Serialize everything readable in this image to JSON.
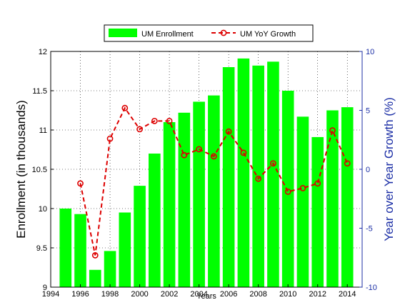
{
  "chart_data": {
    "type": "bar+line",
    "xlabel": "Years",
    "ylabel_left": "Enrollment (in thousands)",
    "ylabel_right": "Year over Year Growth (%)",
    "xlim": [
      1994,
      2015
    ],
    "ylim_left": [
      9,
      12
    ],
    "ylim_right": [
      -10,
      10
    ],
    "x_ticks": [
      1994,
      1996,
      1998,
      2000,
      2002,
      2004,
      2006,
      2008,
      2010,
      2012,
      2014
    ],
    "y_ticks_left": [
      9,
      9.5,
      10,
      10.5,
      11,
      11.5,
      12
    ],
    "y_ticks_right": [
      -10,
      -5,
      0,
      5,
      10
    ],
    "grid": true,
    "legend_position": "top",
    "series": [
      {
        "name": "UM Enrollment",
        "kind": "bar",
        "axis": "left",
        "color": "#00ff00",
        "x": [
          1995,
          1996,
          1997,
          1998,
          1999,
          2000,
          2001,
          2002,
          2003,
          2004,
          2005,
          2006,
          2007,
          2008,
          2009,
          2010,
          2011,
          2012,
          2013,
          2014
        ],
        "values": [
          10.0,
          9.93,
          9.22,
          9.46,
          9.95,
          10.29,
          10.7,
          11.1,
          11.22,
          11.36,
          11.44,
          11.8,
          11.91,
          11.82,
          11.87,
          11.5,
          11.17,
          10.91,
          11.25,
          11.29
        ]
      },
      {
        "name": "UM YoY Growth",
        "kind": "line",
        "axis": "right",
        "color": "#dd0000",
        "x": [
          1996,
          1997,
          1998,
          1999,
          2000,
          2001,
          2002,
          2003,
          2004,
          2005,
          2006,
          2007,
          2008,
          2009,
          2010,
          2011,
          2012,
          2013,
          2014
        ],
        "values": [
          -1.2,
          -7.3,
          2.6,
          5.2,
          3.4,
          4.1,
          4.1,
          1.2,
          1.7,
          1.1,
          3.2,
          1.4,
          -0.8,
          0.5,
          -1.9,
          -1.6,
          -1.2,
          3.3,
          0.5
        ]
      }
    ]
  }
}
